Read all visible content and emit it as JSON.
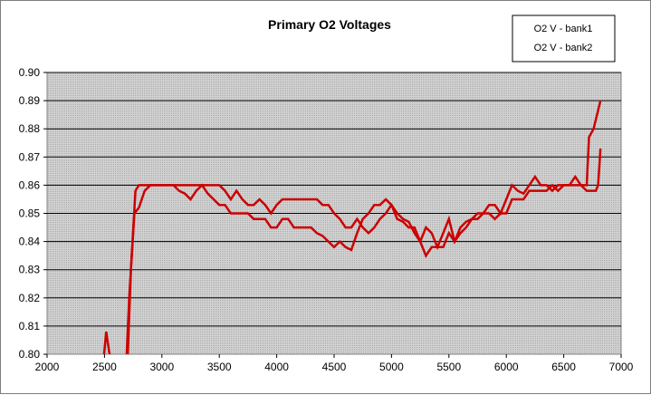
{
  "chart_data": {
    "type": "line",
    "title": "Primary O2 Voltages",
    "xlabel": "",
    "ylabel": "",
    "xlim": [
      2000,
      7000
    ],
    "ylim": [
      0.8,
      0.9
    ],
    "x_ticks": [
      "2000",
      "2500",
      "3000",
      "3500",
      "4000",
      "4500",
      "5000",
      "5500",
      "6000",
      "6500",
      "7000"
    ],
    "y_ticks": [
      "0.80",
      "0.81",
      "0.82",
      "0.83",
      "0.84",
      "0.85",
      "0.86",
      "0.87",
      "0.88",
      "0.89",
      "0.90"
    ],
    "grid": true,
    "legend_position": "top-right",
    "series": [
      {
        "name": "O2 V - bank1",
        "color": "#cc0000",
        "points": [
          [
            2490,
            0.797
          ],
          [
            2515,
            0.808
          ],
          [
            2540,
            0.801
          ],
          [
            2560,
            0.797
          ],
          [
            2690,
            0.797
          ],
          [
            2715,
            0.82
          ],
          [
            2760,
            0.85
          ],
          [
            2800,
            0.852
          ],
          [
            2850,
            0.858
          ],
          [
            2900,
            0.86
          ],
          [
            3000,
            0.86
          ],
          [
            3100,
            0.86
          ],
          [
            3200,
            0.86
          ],
          [
            3250,
            0.86
          ],
          [
            3300,
            0.86
          ],
          [
            3350,
            0.86
          ],
          [
            3400,
            0.86
          ],
          [
            3450,
            0.86
          ],
          [
            3500,
            0.86
          ],
          [
            3550,
            0.858
          ],
          [
            3600,
            0.855
          ],
          [
            3650,
            0.858
          ],
          [
            3700,
            0.855
          ],
          [
            3750,
            0.853
          ],
          [
            3800,
            0.853
          ],
          [
            3850,
            0.855
          ],
          [
            3900,
            0.853
          ],
          [
            3950,
            0.85
          ],
          [
            4000,
            0.853
          ],
          [
            4050,
            0.855
          ],
          [
            4100,
            0.855
          ],
          [
            4200,
            0.855
          ],
          [
            4300,
            0.855
          ],
          [
            4350,
            0.855
          ],
          [
            4400,
            0.853
          ],
          [
            4450,
            0.853
          ],
          [
            4500,
            0.85
          ],
          [
            4550,
            0.848
          ],
          [
            4600,
            0.845
          ],
          [
            4650,
            0.845
          ],
          [
            4700,
            0.848
          ],
          [
            4750,
            0.845
          ],
          [
            4800,
            0.843
          ],
          [
            4850,
            0.845
          ],
          [
            4900,
            0.848
          ],
          [
            4950,
            0.85
          ],
          [
            5000,
            0.853
          ],
          [
            5050,
            0.85
          ],
          [
            5100,
            0.848
          ],
          [
            5150,
            0.847
          ],
          [
            5200,
            0.843
          ],
          [
            5250,
            0.84
          ],
          [
            5300,
            0.845
          ],
          [
            5350,
            0.843
          ],
          [
            5400,
            0.838
          ],
          [
            5450,
            0.843
          ],
          [
            5500,
            0.848
          ],
          [
            5550,
            0.84
          ],
          [
            5600,
            0.843
          ],
          [
            5650,
            0.845
          ],
          [
            5700,
            0.848
          ],
          [
            5750,
            0.848
          ],
          [
            5800,
            0.85
          ],
          [
            5850,
            0.85
          ],
          [
            5900,
            0.848
          ],
          [
            5950,
            0.85
          ],
          [
            6000,
            0.85
          ],
          [
            6050,
            0.855
          ],
          [
            6100,
            0.855
          ],
          [
            6150,
            0.855
          ],
          [
            6200,
            0.858
          ],
          [
            6250,
            0.858
          ],
          [
            6300,
            0.858
          ],
          [
            6350,
            0.858
          ],
          [
            6400,
            0.86
          ],
          [
            6450,
            0.858
          ],
          [
            6500,
            0.86
          ],
          [
            6550,
            0.86
          ],
          [
            6600,
            0.86
          ],
          [
            6650,
            0.86
          ],
          [
            6700,
            0.858
          ],
          [
            6750,
            0.858
          ],
          [
            6780,
            0.858
          ],
          [
            6800,
            0.86
          ],
          [
            6820,
            0.873
          ]
        ]
      },
      {
        "name": "O2 V - bank2",
        "color": "#cc0000",
        "points": [
          [
            2700,
            0.797
          ],
          [
            2730,
            0.83
          ],
          [
            2770,
            0.858
          ],
          [
            2800,
            0.86
          ],
          [
            2900,
            0.86
          ],
          [
            3000,
            0.86
          ],
          [
            3100,
            0.86
          ],
          [
            3150,
            0.858
          ],
          [
            3200,
            0.857
          ],
          [
            3250,
            0.855
          ],
          [
            3300,
            0.858
          ],
          [
            3350,
            0.86
          ],
          [
            3400,
            0.857
          ],
          [
            3450,
            0.855
          ],
          [
            3500,
            0.853
          ],
          [
            3550,
            0.853
          ],
          [
            3600,
            0.85
          ],
          [
            3650,
            0.85
          ],
          [
            3700,
            0.85
          ],
          [
            3750,
            0.85
          ],
          [
            3800,
            0.848
          ],
          [
            3850,
            0.848
          ],
          [
            3900,
            0.848
          ],
          [
            3950,
            0.845
          ],
          [
            4000,
            0.845
          ],
          [
            4050,
            0.848
          ],
          [
            4100,
            0.848
          ],
          [
            4150,
            0.845
          ],
          [
            4200,
            0.845
          ],
          [
            4250,
            0.845
          ],
          [
            4300,
            0.845
          ],
          [
            4350,
            0.843
          ],
          [
            4400,
            0.842
          ],
          [
            4450,
            0.84
          ],
          [
            4500,
            0.838
          ],
          [
            4550,
            0.84
          ],
          [
            4600,
            0.838
          ],
          [
            4650,
            0.837
          ],
          [
            4700,
            0.843
          ],
          [
            4750,
            0.848
          ],
          [
            4800,
            0.85
          ],
          [
            4850,
            0.853
          ],
          [
            4900,
            0.853
          ],
          [
            4950,
            0.855
          ],
          [
            5000,
            0.853
          ],
          [
            5050,
            0.848
          ],
          [
            5100,
            0.847
          ],
          [
            5150,
            0.845
          ],
          [
            5200,
            0.845
          ],
          [
            5250,
            0.84
          ],
          [
            5300,
            0.835
          ],
          [
            5350,
            0.838
          ],
          [
            5400,
            0.838
          ],
          [
            5450,
            0.838
          ],
          [
            5500,
            0.843
          ],
          [
            5550,
            0.84
          ],
          [
            5600,
            0.845
          ],
          [
            5650,
            0.847
          ],
          [
            5700,
            0.848
          ],
          [
            5750,
            0.85
          ],
          [
            5800,
            0.85
          ],
          [
            5850,
            0.853
          ],
          [
            5900,
            0.853
          ],
          [
            5950,
            0.85
          ],
          [
            6000,
            0.855
          ],
          [
            6050,
            0.86
          ],
          [
            6100,
            0.858
          ],
          [
            6150,
            0.857
          ],
          [
            6200,
            0.86
          ],
          [
            6250,
            0.863
          ],
          [
            6300,
            0.86
          ],
          [
            6350,
            0.86
          ],
          [
            6400,
            0.858
          ],
          [
            6450,
            0.86
          ],
          [
            6500,
            0.86
          ],
          [
            6550,
            0.86
          ],
          [
            6600,
            0.863
          ],
          [
            6650,
            0.86
          ],
          [
            6700,
            0.86
          ],
          [
            6720,
            0.877
          ],
          [
            6760,
            0.88
          ],
          [
            6790,
            0.885
          ],
          [
            6820,
            0.89
          ]
        ]
      }
    ],
    "colors": {
      "plot_background": "#c0c0c0",
      "gridline": "#000000",
      "line": "#cc0000"
    }
  }
}
